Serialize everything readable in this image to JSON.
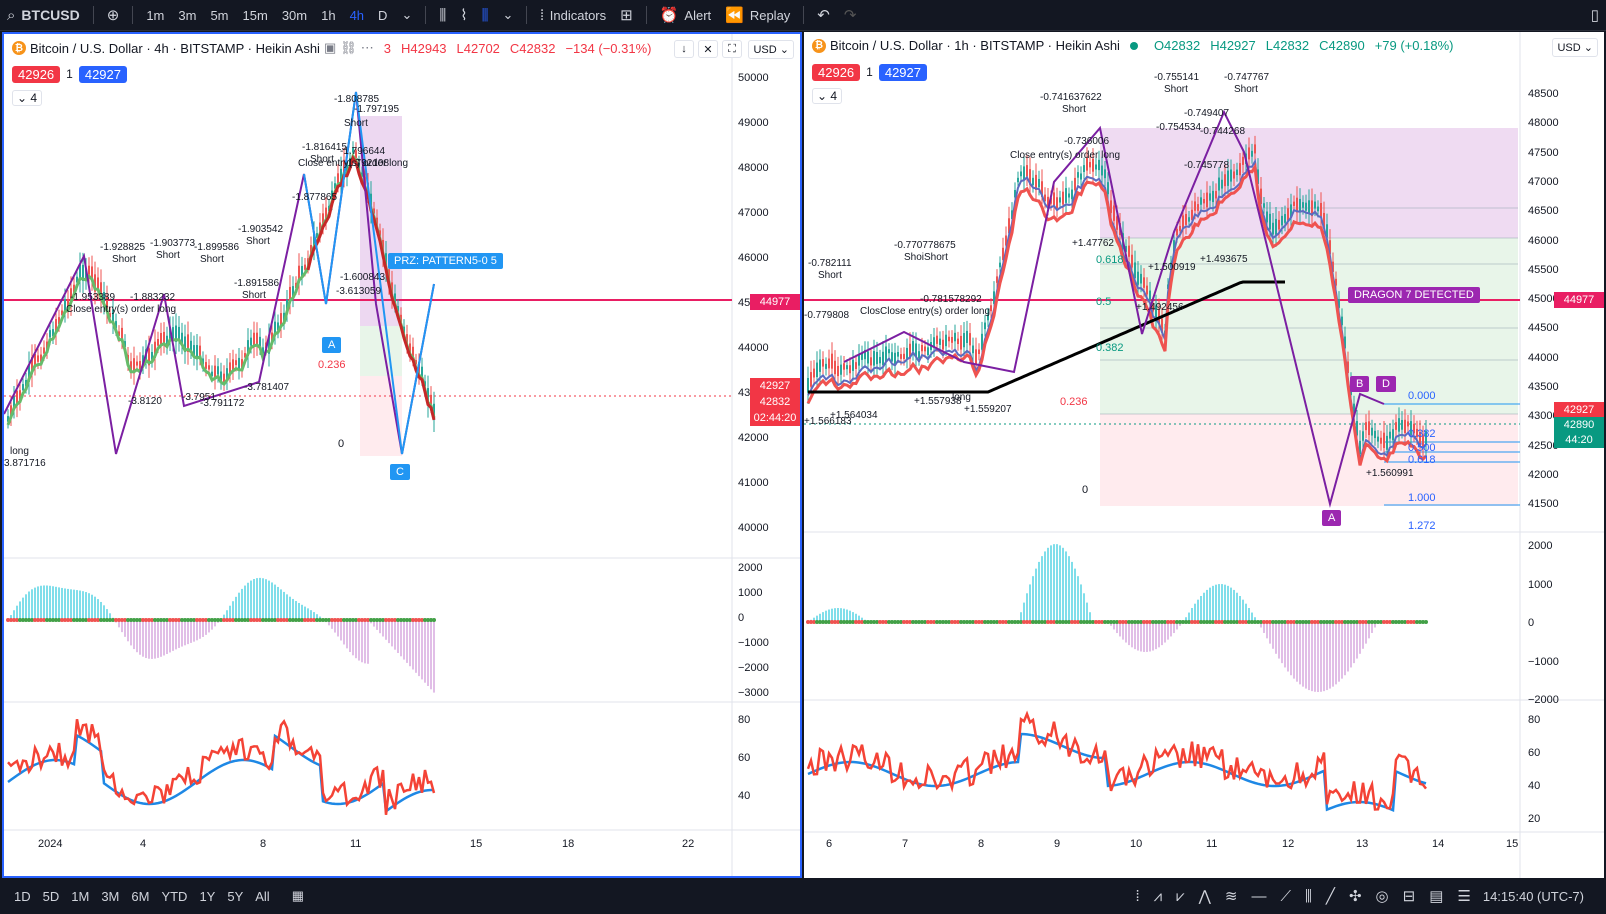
{
  "toolbar": {
    "symbol": "BTCUSD",
    "intervals": [
      "1m",
      "3m",
      "5m",
      "15m",
      "30m",
      "1h",
      "4h",
      "D"
    ],
    "active_interval": "4h",
    "indicators_label": "Indicators",
    "alert_label": "Alert",
    "replay_label": "Replay"
  },
  "left": {
    "title": "Bitcoin / U.S. Dollar · 4h · BITSTAMP · Heikin Ashi",
    "ohlc_o": "3",
    "ohlc_h": "H42943",
    "ohlc_l": "L42702",
    "ohlc_c": "C42832",
    "ohlc_chg": "−134 (−0.31%)",
    "sell_price": "42926",
    "qty": "1",
    "buy_price": "42927",
    "collapse_count": "4",
    "currency": "USD",
    "price_axis": [
      "50000",
      "49000",
      "48000",
      "47000",
      "46000",
      "45000",
      "44000",
      "43000",
      "42000",
      "41000",
      "40000"
    ],
    "horizontal_line_price": "44977",
    "last_price_tag": "42927",
    "last_close_tag": "42832",
    "countdown": "02:44:20",
    "macd_axis": [
      "2000",
      "1000",
      "0",
      "−1000",
      "−2000",
      "−3000"
    ],
    "rsi_axis": [
      "80",
      "60",
      "40"
    ],
    "time_axis": [
      "2024",
      "4",
      "8",
      "11",
      "15",
      "18",
      "22"
    ],
    "prz_label": "PRZ: PATTERN5-0 5",
    "fib_0236": "0.236",
    "fib_0": "0",
    "point_a": "A",
    "point_c": "C",
    "labels": [
      "-1.928825",
      "Short",
      "-1.903773",
      "Short",
      "-1.899586",
      "Short",
      "-1.903542",
      "Short",
      "-1.891586",
      "Short",
      "-1.953389",
      "-1.883232",
      "Close entry(s) order long",
      "-1.808785",
      "-1.797195",
      "Short",
      "-1.816415",
      "Short",
      "-1.796644",
      "-1.792108",
      "Close entry(s) order long",
      "-1.877865",
      "-1.600843",
      "-3.613059",
      "long",
      "3.871716",
      "-3.8120",
      "-3.7951",
      "-3.791172",
      "-3.781407"
    ]
  },
  "right": {
    "title": "Bitcoin / U.S. Dollar · 1h · BITSTAMP · Heikin Ashi",
    "ohlc_o": "O42832",
    "ohlc_h": "H42927",
    "ohlc_l": "L42832",
    "ohlc_c": "C42890",
    "ohlc_chg": "+79 (+0.18%)",
    "sell_price": "42926",
    "qty": "1",
    "buy_price": "42927",
    "collapse_count": "4",
    "currency": "USD",
    "price_axis": [
      "48500",
      "48000",
      "47500",
      "47000",
      "46500",
      "46000",
      "45500",
      "45000",
      "44500",
      "44000",
      "43500",
      "43000",
      "42500",
      "42000",
      "41500"
    ],
    "horizontal_line_price": "44977",
    "last_price_tag": "42927",
    "last_close_tag": "42890",
    "countdown": "44:20",
    "macd_axis": [
      "2000",
      "1000",
      "0",
      "−1000",
      "−2000"
    ],
    "rsi_axis": [
      "80",
      "60",
      "40",
      "20"
    ],
    "time_axis": [
      "6",
      "7",
      "8",
      "9",
      "10",
      "11",
      "12",
      "13",
      "14",
      "15"
    ],
    "dragon_label": "DRAGON 7 DETECTED",
    "fib_levels": [
      "0.000",
      "0.382",
      "0.500",
      "0.618",
      "1.000",
      "1.272"
    ],
    "fib_left": [
      "0.236",
      "0",
      "0.5",
      "0.382",
      "0.618"
    ],
    "points": [
      "A",
      "B",
      "D"
    ],
    "labels": [
      "-0.782111",
      "Short",
      "-0.779808",
      "-0.770778675",
      "ShoiShort",
      "-0.781578292",
      "-0.741637622",
      "Short",
      "-0.755141",
      "Short",
      "-0.747767",
      "Short",
      "-0.749407",
      "-0.754534",
      "-0.744268",
      "-0.736006",
      "-0.745778",
      "Close entry(s) order long",
      "ClosClose entry(s) order long",
      "long",
      "+1.566183",
      "+1.564034",
      "+1.557938",
      "+1.559207",
      "+1.47762",
      "+1.500919",
      "+1.493675",
      "+1.492456",
      "+1.560991"
    ]
  },
  "bottom": {
    "ranges": [
      "1D",
      "5D",
      "1M",
      "3M",
      "6M",
      "YTD",
      "1Y",
      "5Y",
      "All"
    ],
    "clock": "14:15:40 (UTC-7)"
  },
  "colors": {
    "accent": "#2962ff",
    "sell": "#f23645",
    "buy": "#2962ff",
    "hline": "#e91e63",
    "purple": "#9c27b0"
  }
}
